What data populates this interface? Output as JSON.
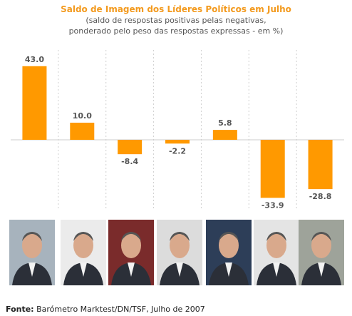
{
  "chart_data": {
    "type": "bar",
    "title": "Saldo de Imagem dos Líderes Políticos em Julho",
    "subtitle_lines": [
      "(saldo de respostas positivas pelas negativas,",
      "ponderado pelo peso das respostas expressas - em %)"
    ],
    "categories": [
      "",
      "",
      "",
      "",
      "",
      "",
      ""
    ],
    "values": [
      43.0,
      10.0,
      -8.4,
      -2.2,
      5.8,
      -33.9,
      -28.8
    ],
    "value_labels": [
      "43.0",
      "10.0",
      "-8.4",
      "-2.2",
      "5.8",
      "-33.9",
      "-28.8"
    ],
    "ylim": [
      -45,
      50
    ],
    "grid": "vertical dashed",
    "bar_color": "#ff9900",
    "legend": "none"
  },
  "source": {
    "label": "Fonte:",
    "text": "Barómetro Marktest/DN/TSF, Julho de 2007"
  },
  "portraits": [
    {
      "icon": "portrait-photo",
      "bg": "#a7b3bd"
    },
    {
      "icon": "portrait-photo",
      "bg": "#ebebeb"
    },
    {
      "icon": "portrait-photo",
      "bg": "#7a2b2b"
    },
    {
      "icon": "portrait-photo",
      "bg": "#dcdcdc"
    },
    {
      "icon": "portrait-photo",
      "bg": "#2d3e58"
    },
    {
      "icon": "portrait-photo",
      "bg": "#e4e4e4"
    },
    {
      "icon": "portrait-photo",
      "bg": "#9ea39a"
    }
  ]
}
